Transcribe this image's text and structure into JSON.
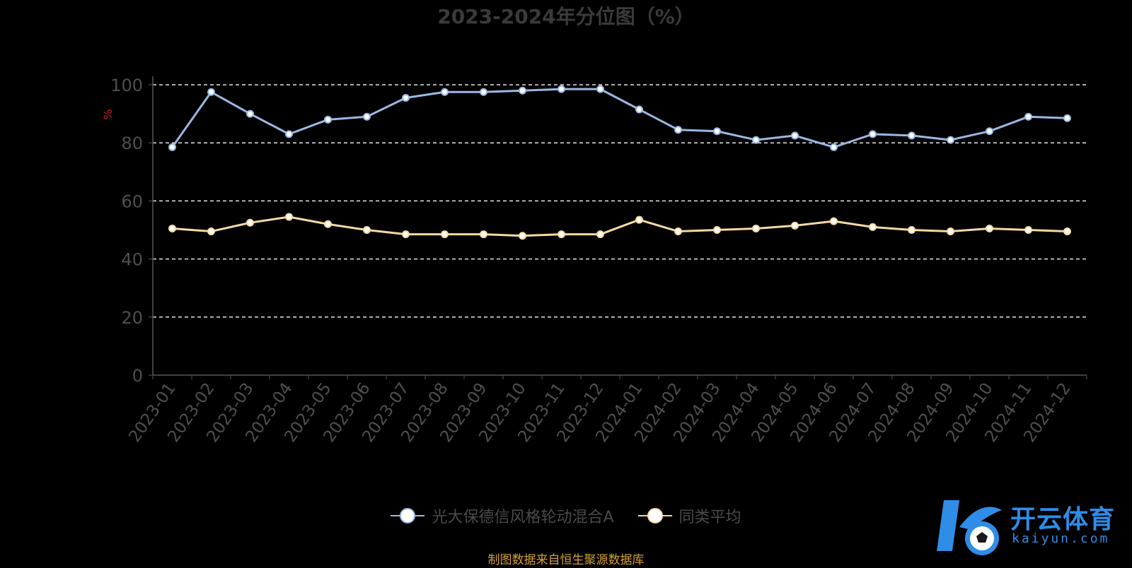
{
  "chart_data": {
    "type": "line",
    "title": "2023-2024年分位图（%）",
    "ylabel": "%",
    "xlabel": "",
    "ylim": [
      0,
      100
    ],
    "yticks": [
      0,
      20,
      40,
      60,
      80,
      100
    ],
    "grid": true,
    "legend_position": "bottom",
    "categories": [
      "2023-01",
      "2023-02",
      "2023-03",
      "2023-04",
      "2023-05",
      "2023-06",
      "2023-07",
      "2023-08",
      "2023-09",
      "2023-10",
      "2023-11",
      "2023-12",
      "2024-01",
      "2024-02",
      "2024-03",
      "2024-04",
      "2024-05",
      "2024-06",
      "2024-07",
      "2024-08",
      "2024-09",
      "2024-10",
      "2024-11",
      "2024-12"
    ],
    "series": [
      {
        "name": "光大保德信风格轮动混合A",
        "color": "#9bb8e3",
        "values": [
          78.5,
          97.5,
          90,
          83,
          88,
          89,
          95.5,
          97.5,
          97.5,
          98,
          98.5,
          98.5,
          91.5,
          84.5,
          84,
          81,
          82.5,
          78.5,
          83,
          82.5,
          81,
          84,
          89,
          88.5
        ]
      },
      {
        "name": "同类平均",
        "color": "#f6d9a4",
        "values": [
          50.5,
          49.5,
          52.5,
          54.5,
          52,
          50,
          48.5,
          48.5,
          48.5,
          48,
          48.5,
          48.5,
          53.5,
          49.5,
          50,
          50.5,
          51.5,
          53,
          51,
          50,
          49.5,
          50.5,
          50,
          49.5
        ]
      }
    ]
  },
  "source_text": "制图数据来自恒生聚源数据库",
  "watermark": {
    "name": "开云体育",
    "domain": "kaiyun.com",
    "color": "#2f8de8"
  }
}
